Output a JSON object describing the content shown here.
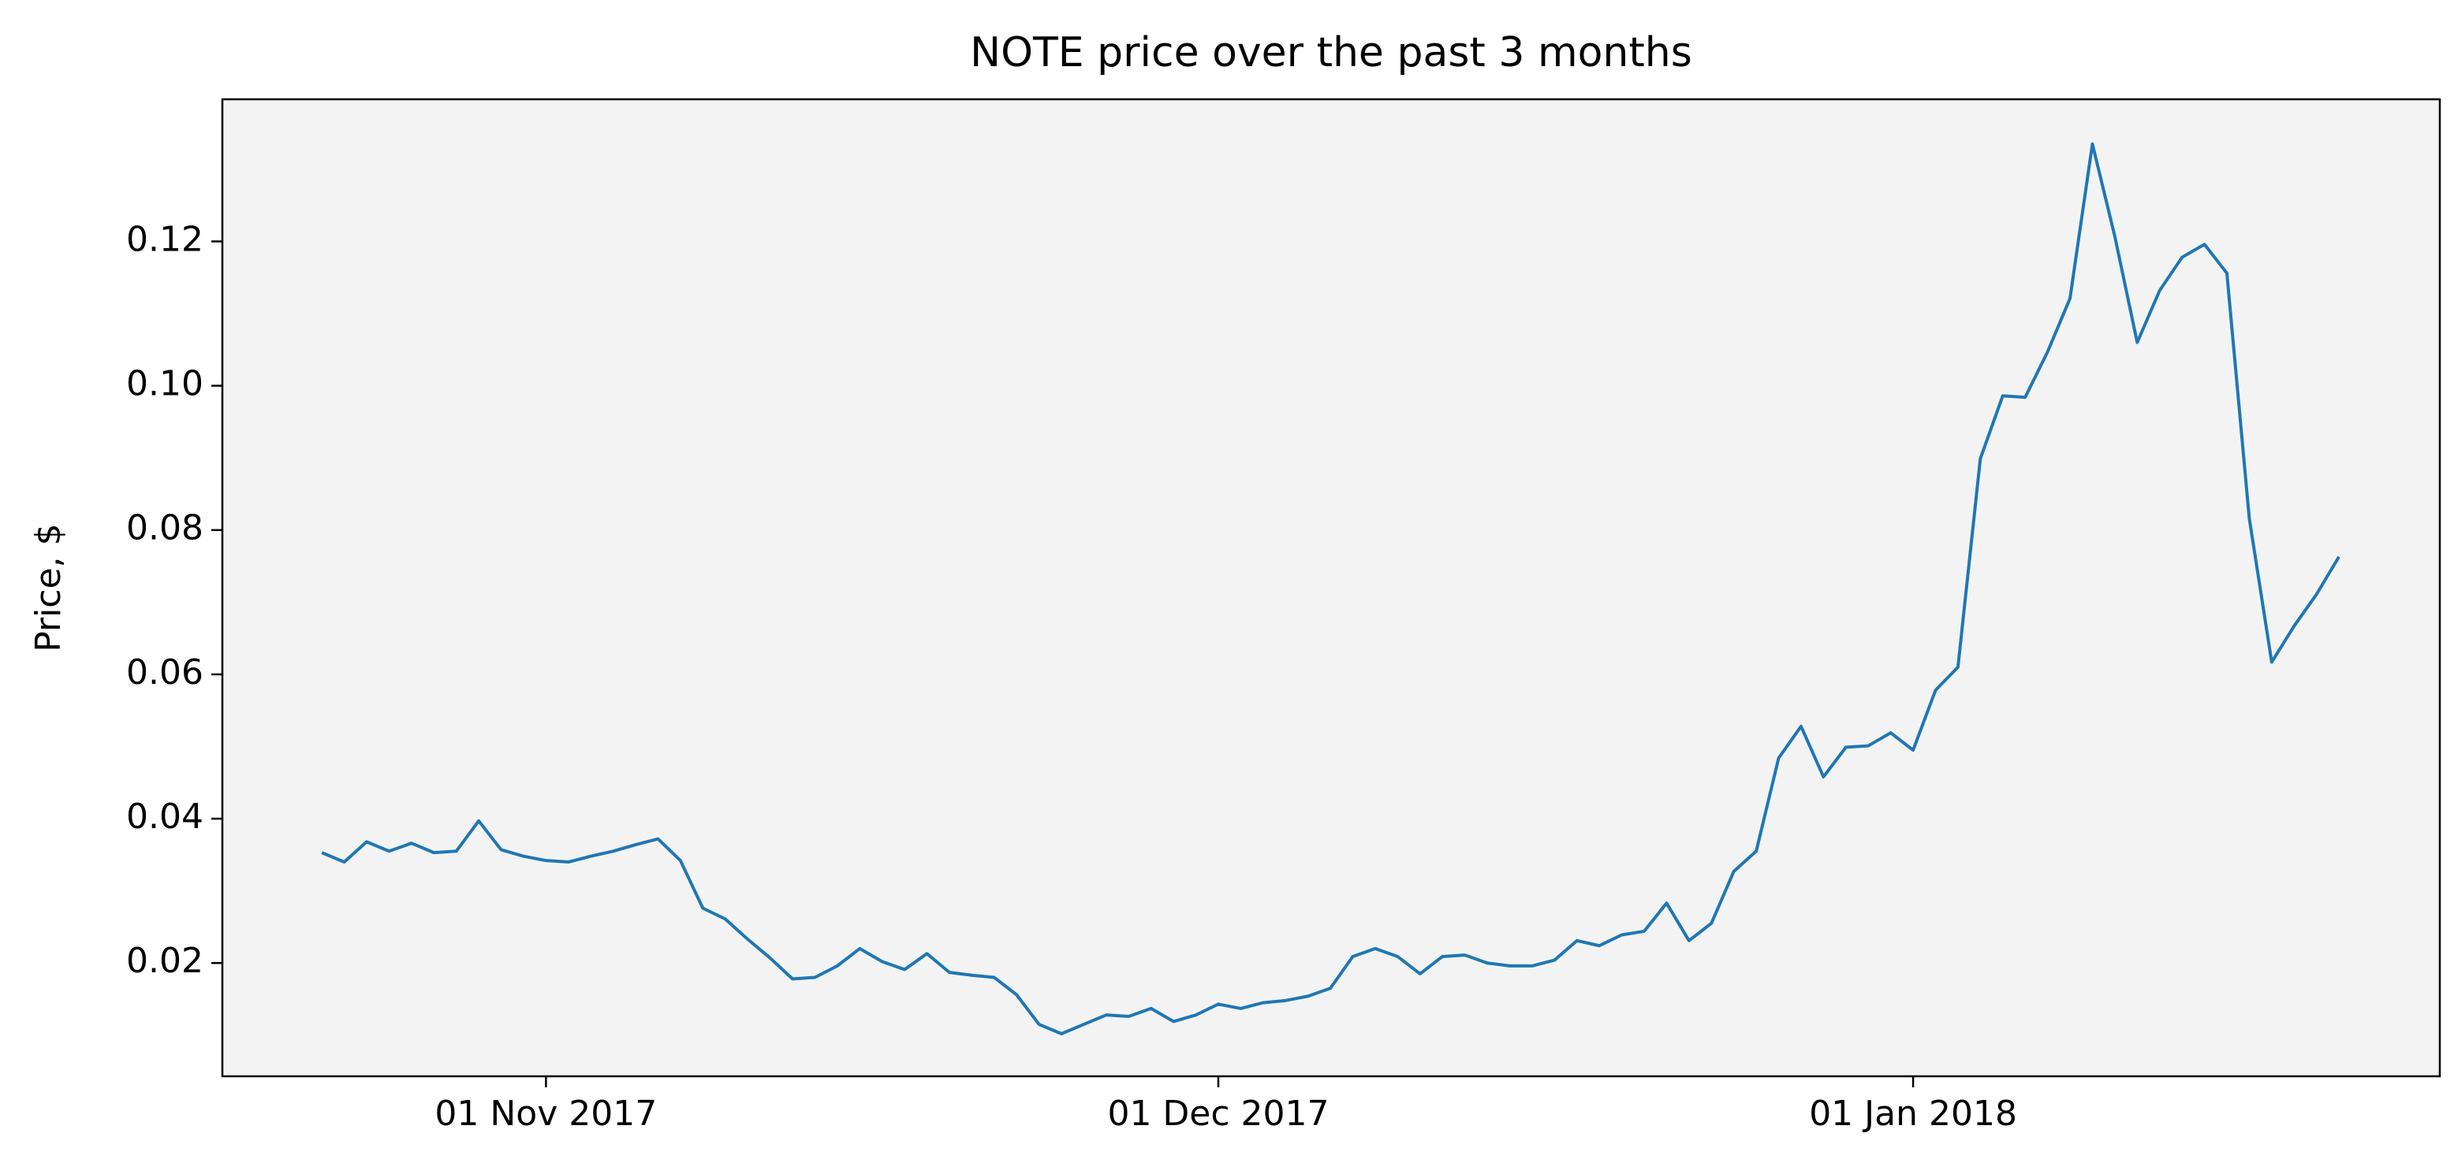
{
  "chart_data": {
    "type": "line",
    "title": "NOTE price over the past 3 months",
    "y_label": "Price, $",
    "x": [
      "2017-10-22",
      "2017-10-23",
      "2017-10-24",
      "2017-10-25",
      "2017-10-26",
      "2017-10-27",
      "2017-10-28",
      "2017-10-29",
      "2017-10-30",
      "2017-10-31",
      "2017-11-01",
      "2017-11-02",
      "2017-11-03",
      "2017-11-04",
      "2017-11-05",
      "2017-11-06",
      "2017-11-07",
      "2017-11-08",
      "2017-11-09",
      "2017-11-10",
      "2017-11-11",
      "2017-11-12",
      "2017-11-13",
      "2017-11-14",
      "2017-11-15",
      "2017-11-16",
      "2017-11-17",
      "2017-11-18",
      "2017-11-19",
      "2017-11-20",
      "2017-11-21",
      "2017-11-22",
      "2017-11-23",
      "2017-11-24",
      "2017-11-25",
      "2017-11-26",
      "2017-11-27",
      "2017-11-28",
      "2017-11-29",
      "2017-11-30",
      "2017-12-01",
      "2017-12-02",
      "2017-12-03",
      "2017-12-04",
      "2017-12-05",
      "2017-12-06",
      "2017-12-07",
      "2017-12-08",
      "2017-12-09",
      "2017-12-10",
      "2017-12-11",
      "2017-12-12",
      "2017-12-13",
      "2017-12-14",
      "2017-12-15",
      "2017-12-16",
      "2017-12-17",
      "2017-12-18",
      "2017-12-19",
      "2017-12-20",
      "2017-12-21",
      "2017-12-22",
      "2017-12-23",
      "2017-12-24",
      "2017-12-25",
      "2017-12-26",
      "2017-12-27",
      "2017-12-28",
      "2017-12-29",
      "2017-12-30",
      "2017-12-31",
      "2018-01-01",
      "2018-01-02",
      "2018-01-03",
      "2018-01-04",
      "2018-01-05",
      "2018-01-06",
      "2018-01-07",
      "2018-01-08",
      "2018-01-09",
      "2018-01-10",
      "2018-01-11",
      "2018-01-12",
      "2018-01-13",
      "2018-01-14",
      "2018-01-15",
      "2018-01-16",
      "2018-01-17",
      "2018-01-18",
      "2018-01-19",
      "2018-01-20"
    ],
    "series": [
      {
        "color": "#1f77b4",
        "values": [
          0.0353,
          0.034,
          0.0368,
          0.0355,
          0.0366,
          0.0353,
          0.0355,
          0.0397,
          0.0357,
          0.0348,
          0.0342,
          0.034,
          0.0348,
          0.0355,
          0.0364,
          0.0372,
          0.0342,
          0.0276,
          0.0261,
          0.0233,
          0.0207,
          0.0178,
          0.018,
          0.0196,
          0.022,
          0.0202,
          0.0191,
          0.0213,
          0.0187,
          0.0183,
          0.018,
          0.0156,
          0.0115,
          0.0102,
          0.0115,
          0.0128,
          0.0126,
          0.0137,
          0.0119,
          0.0128,
          0.0143,
          0.0137,
          0.0145,
          0.0148,
          0.0154,
          0.0165,
          0.0209,
          0.022,
          0.0209,
          0.0185,
          0.0209,
          0.0211,
          0.02,
          0.0196,
          0.0196,
          0.0204,
          0.0231,
          0.0224,
          0.0239,
          0.0244,
          0.0283,
          0.0231,
          0.0255,
          0.0327,
          0.0355,
          0.0484,
          0.0528,
          0.0458,
          0.0499,
          0.0501,
          0.0519,
          0.0495,
          0.0578,
          0.061,
          0.0899,
          0.0986,
          0.0984,
          0.1047,
          0.1121,
          0.1335,
          0.1207,
          0.106,
          0.1132,
          0.1178,
          0.1196,
          0.1156,
          0.0816,
          0.0617,
          0.0667,
          0.0711,
          0.0763
        ]
      }
    ],
    "xlim": [
      "2017-10-17T13:30Z",
      "2018-01-24T12:00Z"
    ],
    "xticks": [
      {
        "value": "2017-11-01",
        "label": "01 Nov 2017"
      },
      {
        "value": "2017-12-01",
        "label": "01 Dec 2017"
      },
      {
        "value": "2018-01-01",
        "label": "01 Jan 2018"
      }
    ],
    "ylim": [
      0.0043,
      0.1397
    ],
    "yticks": [
      {
        "value": 0.02,
        "label": "0.02"
      },
      {
        "value": 0.04,
        "label": "0.04"
      },
      {
        "value": 0.06,
        "label": "0.06"
      },
      {
        "value": 0.08,
        "label": "0.08"
      },
      {
        "value": 0.1,
        "label": "0.10"
      },
      {
        "value": 0.12,
        "label": "0.12"
      }
    ],
    "plot_background": "#f3f3f3"
  }
}
